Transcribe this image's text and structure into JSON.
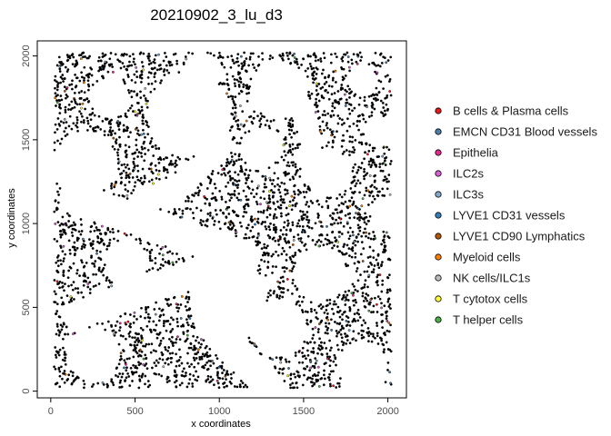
{
  "chart_data": {
    "type": "scatter",
    "title": "20210902_3_lu_d3",
    "xlabel": "x coordinates",
    "ylabel": "y coordinates",
    "xlim": [
      -80,
      2110
    ],
    "ylim": [
      -40,
      2090
    ],
    "x_ticks": [
      0,
      500,
      1000,
      1500,
      2000
    ],
    "y_ticks": [
      0,
      500,
      1000,
      1500,
      2000
    ],
    "x_tick_labels": [
      "0",
      "500",
      "1000",
      "1500",
      "2000"
    ],
    "y_tick_labels": [
      "0",
      "500",
      "1000",
      "1500",
      "2000"
    ],
    "legend_position": "right",
    "grid": false,
    "point_count_approx": 3300,
    "series": [
      {
        "name": "B cells & Plasma cells",
        "color": "#e41a1c"
      },
      {
        "name": "EMCN CD31 Blood vessels",
        "color": "#4d7ea8"
      },
      {
        "name": "Epithelia",
        "color": "#e7298a"
      },
      {
        "name": "ILC2s",
        "color": "#d95fd4"
      },
      {
        "name": "ILC3s",
        "color": "#7fa8c9"
      },
      {
        "name": "LYVE1 CD31 vessels",
        "color": "#377eb8"
      },
      {
        "name": "LYVE1 CD90 Lymphatics",
        "color": "#b35806"
      },
      {
        "name": "Myeloid cells",
        "color": "#ff7f00"
      },
      {
        "name": "NK cells/ILC1s",
        "color": "#bdbdbd"
      },
      {
        "name": "T cytotox cells",
        "color": "#ffff33"
      },
      {
        "name": "T helper cells",
        "color": "#4daf4a"
      }
    ],
    "point_border_color": "#000000",
    "dominant_point_color": "#000000"
  }
}
